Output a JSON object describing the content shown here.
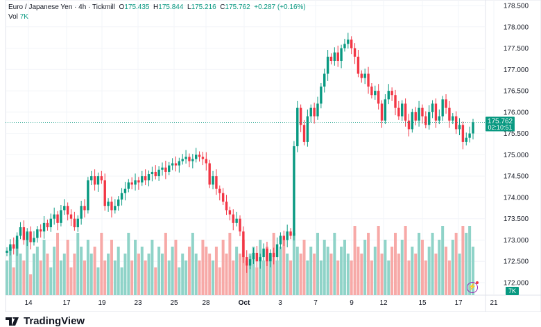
{
  "header": {
    "symbol": "Euro / Japanese Yen · 4h · Tickmill",
    "o_label": "O",
    "o": "175.435",
    "h_label": "H",
    "h": "175.844",
    "l_label": "L",
    "l": "175.216",
    "c_label": "C",
    "c": "175.762",
    "change": "+0.287 (+0.16%)"
  },
  "volume_header": {
    "label": "Vol",
    "value": "7K"
  },
  "price_tag": {
    "price": "175.762",
    "countdown": "02:10:51"
  },
  "volume_badge": "7K",
  "logo_text": "TradingView",
  "colors": {
    "up": "#089981",
    "down": "#f23645",
    "up_vol": "#8fd3c8",
    "down_vol": "#f7a9a7"
  },
  "chart_data": {
    "type": "candlestick",
    "ylim": [
      171.95,
      178.65
    ],
    "y_ticks": [
      "178.500",
      "178.000",
      "177.500",
      "177.000",
      "176.500",
      "176.000",
      "175.500",
      "175.000",
      "174.500",
      "174.000",
      "173.500",
      "173.000",
      "172.500",
      "172.000"
    ],
    "x_ticks": [
      "14",
      "17",
      "19",
      "23",
      "25",
      "28",
      "Oct",
      "3",
      "7",
      "9",
      "12",
      "15",
      "17",
      "21"
    ],
    "closes": [
      172.75,
      172.9,
      172.8,
      173.1,
      173.3,
      173.0,
      173.2,
      172.95,
      173.05,
      173.25,
      173.2,
      173.4,
      173.3,
      173.5,
      173.6,
      173.4,
      173.7,
      173.8,
      173.6,
      173.5,
      173.3,
      173.5,
      173.8,
      173.7,
      174.4,
      174.5,
      174.3,
      174.5,
      174.4,
      173.8,
      173.9,
      173.7,
      173.8,
      173.95,
      174.1,
      174.2,
      174.35,
      174.3,
      174.4,
      174.35,
      174.5,
      174.4,
      174.55,
      174.6,
      174.5,
      174.65,
      174.7,
      174.6,
      174.75,
      174.8,
      174.75,
      174.85,
      174.9,
      174.95,
      174.85,
      174.9,
      175.0,
      174.95,
      174.9,
      174.8,
      174.3,
      174.5,
      174.2,
      174.1,
      173.9,
      173.7,
      173.6,
      173.4,
      173.5,
      173.2,
      172.6,
      172.4,
      172.55,
      172.7,
      172.5,
      172.6,
      172.8,
      172.5,
      172.7,
      172.6,
      172.9,
      173.1,
      173.0,
      173.2,
      173.1,
      175.2,
      176.1,
      175.7,
      175.3,
      175.9,
      176.1,
      175.9,
      176.2,
      176.6,
      176.9,
      177.3,
      177.2,
      177.4,
      177.2,
      177.5,
      177.6,
      177.7,
      177.5,
      177.3,
      176.9,
      176.8,
      176.9,
      176.6,
      176.4,
      176.5,
      176.2,
      175.8,
      176.3,
      176.5,
      176.4,
      176.1,
      175.9,
      176.2,
      175.8,
      175.6,
      176.0,
      175.8,
      176.1,
      175.9,
      175.7,
      176.0,
      176.2,
      175.8,
      175.9,
      176.3,
      176.1,
      175.8,
      175.9,
      175.6,
      175.7,
      175.3,
      175.4,
      175.5,
      175.762
    ],
    "volumes": [
      5,
      7,
      4,
      8,
      6,
      5,
      9,
      3,
      6,
      7,
      5,
      8,
      6,
      4,
      7,
      9,
      5,
      6,
      8,
      4,
      6,
      9,
      7,
      5,
      8,
      6,
      7,
      4,
      9,
      5,
      6,
      8,
      5,
      7,
      4,
      6,
      9,
      5,
      8,
      6,
      7,
      5,
      6,
      8,
      4,
      7,
      6,
      9,
      5,
      7,
      8,
      4,
      6,
      5,
      7,
      9,
      6,
      5,
      8,
      7,
      6,
      5,
      7,
      4,
      8,
      6,
      9,
      5,
      7,
      6,
      8,
      5,
      6,
      7,
      4,
      8,
      5,
      7,
      6,
      9,
      5,
      7,
      8,
      6,
      5,
      9,
      7,
      6,
      8,
      5,
      7,
      6,
      9,
      5,
      8,
      7,
      6,
      9,
      5,
      7,
      8,
      6,
      5,
      10,
      7,
      6,
      8,
      9,
      5,
      7,
      10,
      6,
      8,
      5,
      7,
      9,
      6,
      8,
      10,
      5,
      7,
      6,
      9,
      8,
      5,
      7,
      9,
      6,
      8,
      10,
      7,
      5,
      8,
      9,
      6,
      10,
      9,
      10,
      7
    ]
  }
}
